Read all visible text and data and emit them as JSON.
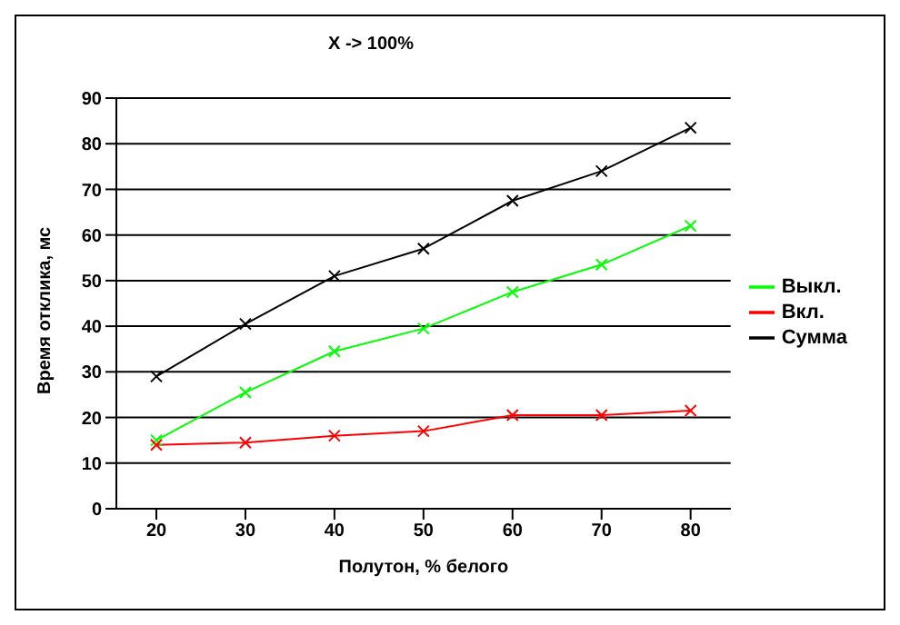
{
  "chart_data": {
    "type": "line",
    "title": "X -> 100%",
    "xlabel": "Полутон, % белого",
    "ylabel": "Время отклика, мс",
    "categories": [
      "20",
      "30",
      "40",
      "50",
      "60",
      "70",
      "80"
    ],
    "series": [
      {
        "name": "Выкл.",
        "color": "#00ff00",
        "values": [
          15,
          25.5,
          34.5,
          39.5,
          47.5,
          53.5,
          62
        ]
      },
      {
        "name": "Вкл.",
        "color": "#ff0000",
        "values": [
          14,
          14.5,
          16,
          17,
          20.5,
          20.5,
          21.5
        ]
      },
      {
        "name": "Сумма",
        "color": "#000000",
        "values": [
          29,
          40.5,
          51,
          57,
          67.5,
          74,
          83.5
        ]
      }
    ],
    "ylim": [
      0,
      90
    ],
    "yticks": [
      0,
      10,
      20,
      30,
      40,
      50,
      60,
      70,
      80,
      90
    ],
    "grid": "y",
    "legend": "right",
    "marker": "cross",
    "line_style": "solid"
  }
}
